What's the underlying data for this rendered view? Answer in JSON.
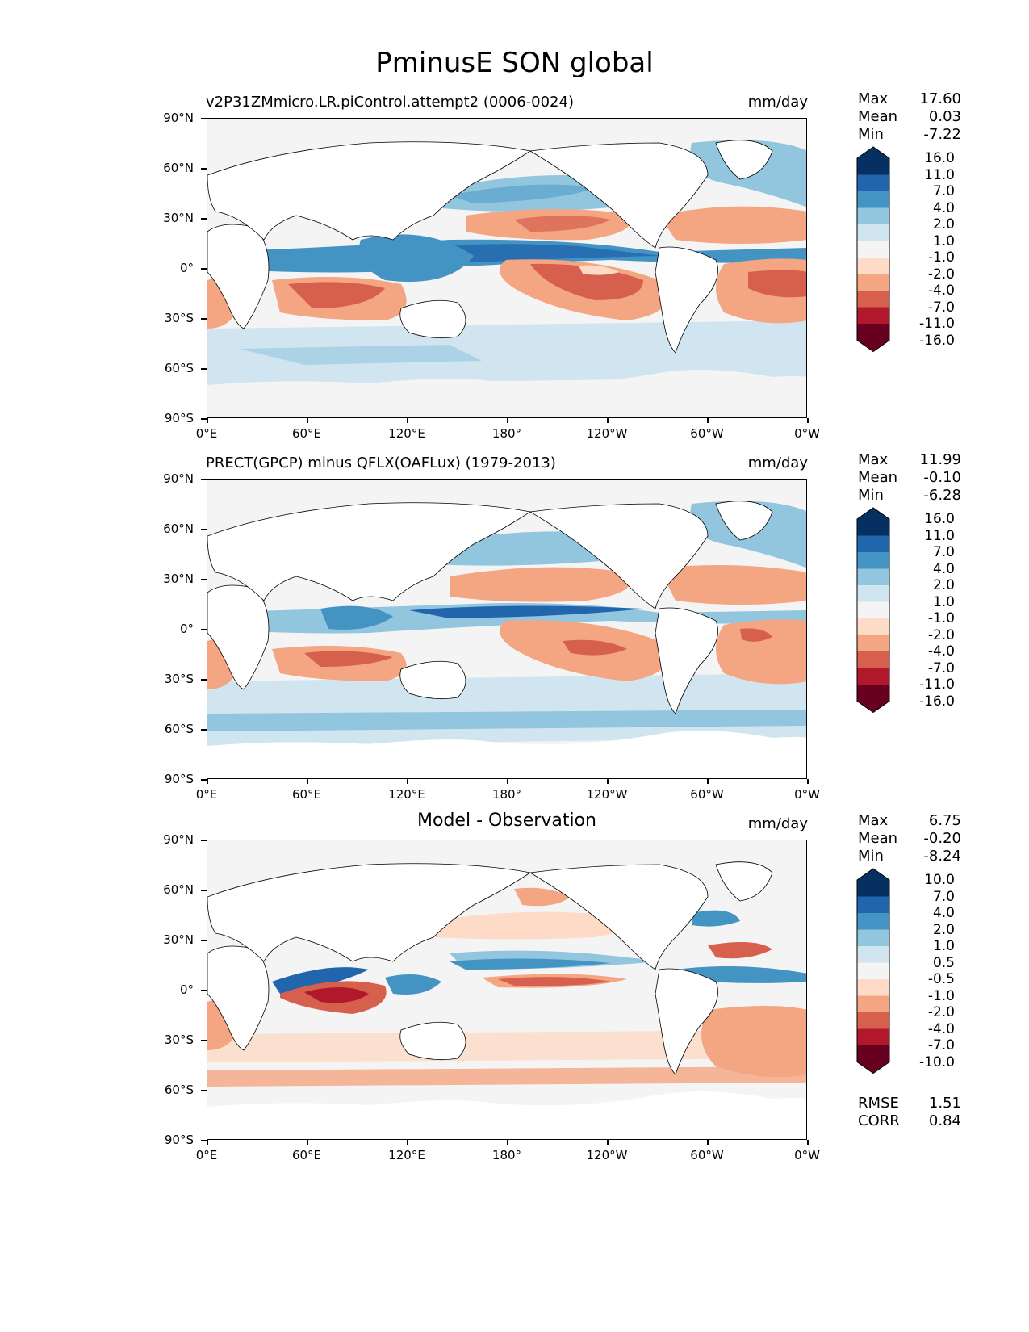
{
  "title": "PminusE SON global",
  "lat_labels": [
    "90°N",
    "60°N",
    "30°N",
    "0°",
    "30°S",
    "60°S",
    "90°S"
  ],
  "lon_labels": [
    "0°E",
    "60°E",
    "120°E",
    "180°",
    "120°W",
    "60°W",
    "0°W"
  ],
  "panels": [
    {
      "title": "v2P31ZMmicro.LR.piControl.attempt2 (0006-0024)",
      "units": "mm/day",
      "stats": {
        "max_label": "Max",
        "max": "17.60",
        "mean_label": "Mean",
        "mean": "0.03",
        "min_label": "Min",
        "min": "-7.22"
      },
      "colorbar_levels": [
        "16.0",
        "11.0",
        "7.0",
        "4.0",
        "2.0",
        "1.0",
        "-1.0",
        "-2.0",
        "-4.0",
        "-7.0",
        "-11.0",
        "-16.0"
      ]
    },
    {
      "title": "PRECT(GPCP) minus QFLX(OAFLux) (1979-2013)",
      "units": "mm/day",
      "stats": {
        "max_label": "Max",
        "max": "11.99",
        "mean_label": "Mean",
        "mean": "-0.10",
        "min_label": "Min",
        "min": "-6.28"
      },
      "colorbar_levels": [
        "16.0",
        "11.0",
        "7.0",
        "4.0",
        "2.0",
        "1.0",
        "-1.0",
        "-2.0",
        "-4.0",
        "-7.0",
        "-11.0",
        "-16.0"
      ]
    },
    {
      "title": "Model - Observation",
      "units": "mm/day",
      "stats": {
        "max_label": "Max",
        "max": "6.75",
        "mean_label": "Mean",
        "mean": "-0.20",
        "min_label": "Min",
        "min": "-8.24"
      },
      "colorbar_levels": [
        "10.0",
        "7.0",
        "4.0",
        "2.0",
        "1.0",
        "0.5",
        "-0.5",
        "-1.0",
        "-2.0",
        "-4.0",
        "-7.0",
        "-10.0"
      ],
      "error_stats": {
        "rmse_label": "RMSE",
        "rmse": "1.51",
        "corr_label": "CORR",
        "corr": "0.84"
      }
    }
  ],
  "colors": {
    "blue_4": "#053061",
    "blue_3": "#2166ac",
    "blue_2": "#4393c3",
    "blue_1": "#92c5de",
    "blue_0": "#d1e5f0",
    "neutral": "#f4f4f4",
    "red_0": "#fddbc7",
    "red_1": "#f4a582",
    "red_2": "#d6604d",
    "red_3": "#b2182b",
    "red_4": "#67001f",
    "land": "#ffffff"
  }
}
